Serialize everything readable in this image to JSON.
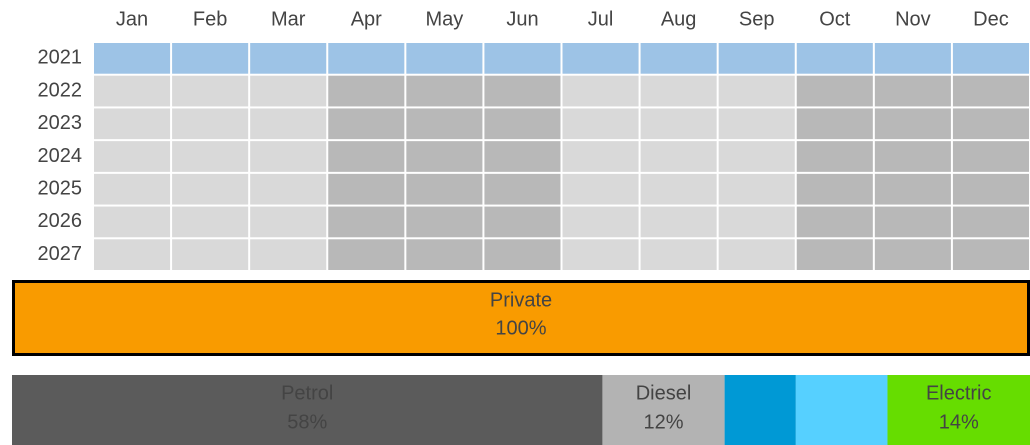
{
  "months": [
    "Jan",
    "Feb",
    "Mar",
    "Apr",
    "May",
    "Jun",
    "Jul",
    "Aug",
    "Sep",
    "Oct",
    "Nov",
    "Dec"
  ],
  "years": [
    "2021",
    "2022",
    "2023",
    "2024",
    "2025",
    "2026",
    "2027"
  ],
  "private": {
    "label": "Private",
    "value": 100,
    "value_label": "100%",
    "color": "#f99b00"
  },
  "fuel": {
    "labels": [
      "Petrol",
      "Diesel",
      null,
      null,
      "Electric"
    ],
    "values": [
      58,
      12,
      7,
      9,
      14
    ],
    "value_labels": [
      "58%",
      "12%",
      null,
      null,
      "14%"
    ],
    "colors": [
      "#5b5b5b",
      "#b3b3b3",
      "#0099d5",
      "#56d0ff",
      "#66dd00"
    ],
    "text_colors": [
      "#ffffff",
      "#333333",
      "#333333",
      "#333333",
      "#333333"
    ]
  }
}
